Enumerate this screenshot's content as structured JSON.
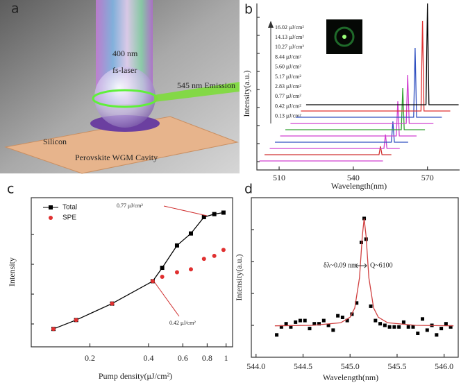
{
  "illustration": {
    "label": "a",
    "laser_line1": "400 nm",
    "laser_line2": "fs-laser",
    "emission": "545 nm  Emission",
    "substrate": "Silicon",
    "cavity": "Perovskite  WGM Cavity"
  },
  "chart_data": [
    {
      "type": "line",
      "panel_label": "b",
      "xlabel": "Wavelength(nm)",
      "ylabel": "Intensity(a.u.)",
      "xlim": [
        501,
        583
      ],
      "xticks": [
        510,
        540,
        570
      ],
      "ylim": [
        0,
        12
      ],
      "series": [
        {
          "name": "0.13 μJ/cm²",
          "color": "#d040d0",
          "x": [
            502,
            552
          ],
          "values": [
            0.65,
            0.65
          ]
        },
        {
          "name": "0.42 μJ/cm²",
          "color": "#d03030",
          "x": [
            504.1,
            550.4,
            551,
            551.6,
            555.4
          ],
          "values": [
            1.1,
            1.1,
            1.7,
            1.1,
            1.1
          ]
        },
        {
          "name": "0.77 μJ/cm²",
          "color": "#d040d0",
          "x": [
            506.2,
            552.4,
            553,
            553.6,
            558.8
          ],
          "values": [
            1.55,
            1.55,
            2.55,
            1.55,
            1.55
          ]
        },
        {
          "name": "2.83 μJ/cm²",
          "color": "#3050c0",
          "x": [
            508.3,
            555.4,
            556,
            556.6,
            562.2
          ],
          "values": [
            2,
            2,
            3.5,
            2,
            2
          ]
        },
        {
          "name": "5.17 μJ/cm²",
          "color": "#d040d0",
          "x": [
            510.4,
            557.4,
            558,
            558.6,
            565.6
          ],
          "values": [
            2.45,
            2.45,
            4.95,
            2.45,
            2.45
          ]
        },
        {
          "name": "5.60 μJ/cm²",
          "color": "#30a030",
          "x": [
            512.5,
            559.4,
            560,
            560.6,
            569
          ],
          "values": [
            2.9,
            2.9,
            5.9,
            2.9,
            2.9
          ]
        },
        {
          "name": "8.44 μJ/cm²",
          "color": "#d040d0",
          "x": [
            514.6,
            561.4,
            562,
            562.6,
            572.4
          ],
          "values": [
            3.35,
            3.35,
            6.85,
            3.35,
            3.35
          ]
        },
        {
          "name": "10.27 μJ/cm²",
          "color": "#3050c0",
          "x": [
            516.7,
            564.4,
            565,
            565.6,
            575.8
          ],
          "values": [
            3.8,
            3.8,
            8.8,
            3.8,
            3.8
          ]
        },
        {
          "name": "14.13 μJ/cm²",
          "color": "#e03030",
          "x": [
            518.8,
            567.4,
            568,
            568.6,
            579.2
          ],
          "values": [
            4.25,
            4.25,
            10.75,
            4.25,
            4.25
          ]
        },
        {
          "name": "16.02 μJ/cm²",
          "color": "#000000",
          "x": [
            520.9,
            569.4,
            570,
            570.6,
            582.6
          ],
          "values": [
            4.7,
            4.7,
            12,
            4.7,
            4.7
          ]
        }
      ]
    },
    {
      "type": "line",
      "panel_label": "c",
      "xlabel": "Pump density(μJ/cm²)",
      "ylabel": "Intensity",
      "xscale": "log",
      "xlim": [
        0.1,
        1.08
      ],
      "xticks": [
        0.2,
        0.4,
        0.6,
        0.8,
        1
      ],
      "ylim": [
        0,
        10
      ],
      "series": [
        {
          "name": "Total",
          "color": "#000000",
          "marker": "square",
          "line": true,
          "x": [
            0.13,
            0.17,
            0.26,
            0.42,
            0.47,
            0.56,
            0.66,
            0.77,
            0.87,
            0.97
          ],
          "values": [
            1.2,
            1.8,
            2.9,
            4.4,
            5.3,
            6.8,
            7.6,
            8.7,
            8.9,
            9.0
          ]
        },
        {
          "name": "SPE",
          "color": "#e03030",
          "marker": "circle",
          "line": false,
          "x": [
            0.13,
            0.17,
            0.26,
            0.42,
            0.47,
            0.56,
            0.66,
            0.77,
            0.87,
            0.97
          ],
          "values": [
            1.2,
            1.8,
            2.9,
            4.4,
            4.7,
            5.0,
            5.2,
            5.9,
            6.1,
            6.5
          ]
        }
      ],
      "annotations": [
        "0.77 μJ/cm²",
        "0.42 μJ/cm²"
      ]
    },
    {
      "type": "scatter",
      "panel_label": "d",
      "xlabel": "Wavelength(nm)",
      "ylabel": "Intensity(a.u.)",
      "xlim": [
        543.95,
        546.15
      ],
      "xticks": [
        {
          "value": 544,
          "label": "544.0"
        },
        544.5,
        {
          "value": 545,
          "label": "545.0"
        },
        545.5,
        {
          "value": 546,
          "label": "546.0"
        }
      ],
      "ylim": [
        0,
        10
      ],
      "series": [
        {
          "type": "scatter",
          "color": "#000000",
          "x": [
            544.22,
            544.27,
            544.32,
            544.37,
            544.42,
            544.47,
            544.52,
            544.57,
            544.62,
            544.67,
            544.72,
            544.77,
            544.82,
            544.87,
            544.92,
            544.97,
            545.02,
            545.07,
            545.12,
            545.15,
            545.17,
            545.22,
            545.27,
            545.32,
            545.37,
            545.42,
            545.47,
            545.52,
            545.57,
            545.62,
            545.67,
            545.72,
            545.77,
            545.82,
            545.87,
            545.92,
            545.97,
            546.02,
            546.07
          ],
          "values": [
            1.4,
            1.9,
            2.1,
            1.9,
            2.2,
            2.3,
            2.3,
            1.8,
            2.1,
            2.1,
            2.3,
            2.0,
            1.7,
            2.6,
            2.5,
            2.3,
            2.7,
            3.4,
            7.2,
            8.7,
            7.4,
            3.2,
            2.3,
            2.1,
            2.0,
            1.9,
            1.9,
            1.9,
            2.2,
            1.9,
            1.9,
            1.5,
            2.4,
            1.7,
            2.0,
            1.4,
            1.8,
            2.1,
            1.9
          ]
        },
        {
          "type": "line",
          "color": "#d04040",
          "x": [
            544.2,
            544.6,
            544.9,
            545.0,
            545.05,
            545.1,
            545.13,
            545.15,
            545.17,
            545.2,
            545.25,
            545.3,
            545.4,
            545.7,
            546.1
          ],
          "values": [
            1.97,
            2.0,
            2.16,
            2.51,
            3.09,
            4.98,
            7.58,
            8.7,
            7.58,
            4.98,
            3.09,
            2.51,
            2.16,
            2.0,
            1.97
          ]
        }
      ],
      "annotations": [
        "δλ~0.09 nm",
        "Q~6100"
      ]
    }
  ]
}
